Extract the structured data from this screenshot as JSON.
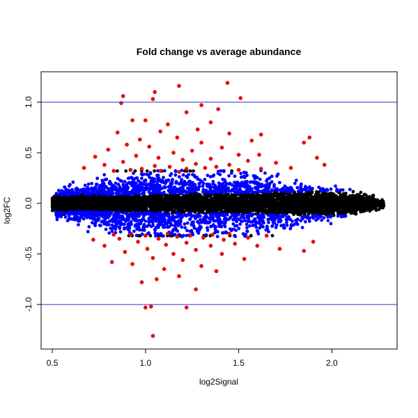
{
  "chart_data": {
    "type": "scatter",
    "title": "Fold change vs average abundance",
    "xlabel": "log2Signal",
    "ylabel": "log2FC",
    "xlim": [
      0.44,
      2.35
    ],
    "ylim": [
      -1.44,
      1.3
    ],
    "xticks": [
      {
        "value": 0.5,
        "label": "0.5"
      },
      {
        "value": 1.0,
        "label": "1.0"
      },
      {
        "value": 1.5,
        "label": "1.5"
      },
      {
        "value": 2.0,
        "label": "2.0"
      }
    ],
    "yticks": [
      {
        "value": -1.0,
        "label": "-1.0"
      },
      {
        "value": -0.5,
        "label": "-0.5"
      },
      {
        "value": 0.0,
        "label": "0.0"
      },
      {
        "value": 0.5,
        "label": "0.5"
      },
      {
        "value": 1.0,
        "label": "1.0"
      }
    ],
    "hlines": [
      {
        "value": 1.0,
        "color": "#3333cc"
      },
      {
        "value": -1.0,
        "color": "#3333cc"
      }
    ],
    "grid": false,
    "colors": {
      "black": "#000000",
      "blue": "#0000ff",
      "red": "#ff0000"
    },
    "series": [
      {
        "color": "#ff0000",
        "points": [
          [
            0.88,
            1.06
          ],
          [
            1.05,
            1.1
          ],
          [
            1.18,
            1.16
          ],
          [
            1.44,
            1.19
          ],
          [
            1.51,
            1.04
          ],
          [
            1.04,
            1.03
          ],
          [
            0.87,
            0.99
          ],
          [
            1.3,
            0.97
          ],
          [
            1.39,
            0.93
          ],
          [
            1.22,
            0.9
          ],
          [
            1.0,
            0.82
          ],
          [
            0.93,
            0.82
          ],
          [
            1.12,
            0.78
          ],
          [
            1.35,
            0.8
          ],
          [
            1.62,
            0.68
          ],
          [
            1.88,
            0.65
          ],
          [
            0.85,
            0.7
          ],
          [
            1.28,
            0.73
          ],
          [
            1.45,
            0.69
          ],
          [
            1.08,
            0.71
          ],
          [
            1.57,
            0.62
          ],
          [
            1.85,
            0.6
          ],
          [
            1.17,
            0.65
          ],
          [
            0.97,
            0.63
          ],
          [
            0.9,
            0.58
          ],
          [
            1.3,
            0.6
          ],
          [
            1.41,
            0.55
          ],
          [
            1.02,
            0.56
          ],
          [
            1.25,
            0.52
          ],
          [
            0.8,
            0.53
          ],
          [
            1.15,
            0.5
          ],
          [
            1.5,
            0.48
          ],
          [
            1.61,
            0.48
          ],
          [
            1.92,
            0.45
          ],
          [
            0.95,
            0.47
          ],
          [
            1.07,
            0.45
          ],
          [
            1.35,
            0.44
          ],
          [
            1.2,
            0.43
          ],
          [
            0.73,
            0.46
          ],
          [
            1.55,
            0.42
          ],
          [
            1.7,
            0.4
          ],
          [
            1.96,
            0.38
          ],
          [
            0.88,
            0.41
          ],
          [
            1.27,
            0.39
          ],
          [
            1.45,
            0.38
          ],
          [
            1.05,
            0.37
          ],
          [
            1.13,
            0.36
          ],
          [
            0.78,
            0.38
          ],
          [
            0.67,
            0.35
          ],
          [
            1.38,
            0.36
          ],
          [
            1.62,
            0.34
          ],
          [
            0.98,
            0.34
          ],
          [
            1.22,
            0.34
          ],
          [
            1.78,
            0.35
          ],
          [
            1.5,
            0.33
          ],
          [
            0.92,
            0.33
          ],
          [
            1.32,
            0.35
          ],
          [
            1.08,
            0.32
          ],
          [
            1.18,
            0.31
          ],
          [
            0.83,
            0.32
          ],
          [
            1.03,
            -1.02
          ],
          [
            1.0,
            -1.03
          ],
          [
            1.22,
            -1.03
          ],
          [
            1.04,
            -1.31
          ],
          [
            1.27,
            -0.85
          ],
          [
            0.98,
            -0.78
          ],
          [
            1.06,
            -0.75
          ],
          [
            1.18,
            -0.72
          ],
          [
            1.38,
            -0.67
          ],
          [
            1.1,
            -0.65
          ],
          [
            0.82,
            -0.58
          ],
          [
            1.3,
            -0.62
          ],
          [
            1.53,
            -0.55
          ],
          [
            0.93,
            -0.6
          ],
          [
            1.2,
            -0.56
          ],
          [
            1.04,
            -0.54
          ],
          [
            1.41,
            -0.5
          ],
          [
            1.15,
            -0.5
          ],
          [
            1.72,
            -0.45
          ],
          [
            1.85,
            -0.47
          ],
          [
            0.89,
            -0.48
          ],
          [
            1.27,
            -0.46
          ],
          [
            1.01,
            -0.45
          ],
          [
            1.6,
            -0.42
          ],
          [
            1.35,
            -0.42
          ],
          [
            1.11,
            -0.41
          ],
          [
            1.48,
            -0.4
          ],
          [
            0.78,
            -0.42
          ],
          [
            1.22,
            -0.39
          ],
          [
            0.96,
            -0.38
          ],
          [
            1.9,
            -0.38
          ],
          [
            0.72,
            -0.36
          ],
          [
            1.42,
            -0.36
          ],
          [
            1.07,
            -0.35
          ],
          [
            1.31,
            -0.34
          ],
          [
            0.86,
            -0.35
          ],
          [
            1.55,
            -0.34
          ],
          [
            1.17,
            -0.33
          ],
          [
            1.0,
            -0.32
          ],
          [
            1.24,
            -0.32
          ],
          [
            0.92,
            -0.31
          ],
          [
            1.36,
            -0.31
          ],
          [
            1.65,
            -0.32
          ],
          [
            1.12,
            -0.3
          ],
          [
            0.83,
            -0.31
          ],
          [
            1.45,
            -0.3
          ]
        ]
      }
    ]
  }
}
